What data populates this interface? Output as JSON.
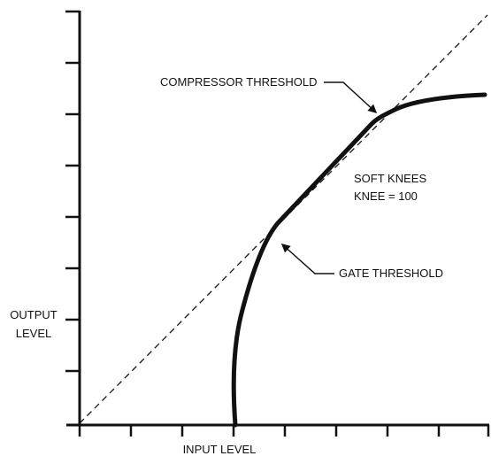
{
  "diagram": {
    "y_axis_label_line1": "OUTPUT",
    "y_axis_label_line2": "LEVEL",
    "x_axis_label": "INPUT LEVEL",
    "compressor_label": "COMPRESSOR THRESHOLD",
    "gate_label": "GATE THRESHOLD",
    "soft_knees_line1": "SOFT KNEES",
    "soft_knees_line2": "KNEE = 100"
  },
  "colors": {
    "ink": "#111111",
    "background": "#ffffff"
  }
}
